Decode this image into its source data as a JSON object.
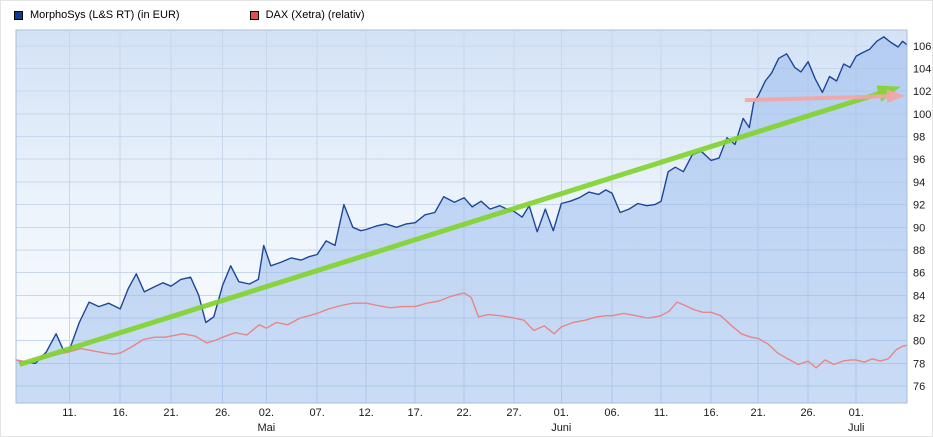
{
  "legend": {
    "items": [
      {
        "label": "MorphoSys (L&S RT) (in EUR)",
        "color": "#123a8c"
      },
      {
        "label": "DAX (Xetra) (relativ)",
        "color": "#e05050"
      }
    ]
  },
  "chart_data": {
    "type": "line",
    "title": "",
    "xlabel": "",
    "ylabel": "",
    "legend_position": "top-left",
    "grid": true,
    "background_gradient": [
      "#d3e2f6",
      "#edf4fc",
      "#ffffff"
    ],
    "grid_color": "#c9d7eb",
    "ylim": [
      74.5,
      107.4
    ],
    "yticks": [
      76,
      78,
      80,
      82,
      84,
      86,
      88,
      90,
      92,
      94,
      96,
      98,
      100,
      102,
      104,
      106
    ],
    "xticks": [
      {
        "pos": 0.06,
        "label": "11."
      },
      {
        "pos": 0.117,
        "label": "16."
      },
      {
        "pos": 0.174,
        "label": "21."
      },
      {
        "pos": 0.232,
        "label": "26."
      },
      {
        "pos": 0.281,
        "label": "02."
      },
      {
        "pos": 0.338,
        "label": "07."
      },
      {
        "pos": 0.393,
        "label": "12."
      },
      {
        "pos": 0.448,
        "label": "17."
      },
      {
        "pos": 0.503,
        "label": "22."
      },
      {
        "pos": 0.559,
        "label": "27."
      },
      {
        "pos": 0.612,
        "label": "01."
      },
      {
        "pos": 0.669,
        "label": "06."
      },
      {
        "pos": 0.724,
        "label": "11."
      },
      {
        "pos": 0.78,
        "label": "16."
      },
      {
        "pos": 0.833,
        "label": "21."
      },
      {
        "pos": 0.889,
        "label": "26."
      },
      {
        "pos": 0.943,
        "label": "01."
      }
    ],
    "month_labels": [
      {
        "pos": 0.281,
        "label": "Mai"
      },
      {
        "pos": 0.612,
        "label": "Juni"
      },
      {
        "pos": 0.943,
        "label": "Juli"
      }
    ],
    "series": [
      {
        "name": "MorphoSys (L&S RT) (in EUR)",
        "type": "area",
        "color": "#1d4796",
        "fill": "rgba(147,184,236,0.5)",
        "points": [
          [
            0.0,
            78.3
          ],
          [
            0.011,
            78.1
          ],
          [
            0.022,
            78.0
          ],
          [
            0.034,
            79.0
          ],
          [
            0.045,
            80.6
          ],
          [
            0.053,
            79.2
          ],
          [
            0.059,
            79.0
          ],
          [
            0.071,
            81.6
          ],
          [
            0.082,
            83.4
          ],
          [
            0.093,
            83.0
          ],
          [
            0.104,
            83.3
          ],
          [
            0.117,
            82.8
          ],
          [
            0.126,
            84.6
          ],
          [
            0.135,
            85.9
          ],
          [
            0.144,
            84.3
          ],
          [
            0.154,
            84.7
          ],
          [
            0.165,
            85.1
          ],
          [
            0.174,
            84.8
          ],
          [
            0.185,
            85.4
          ],
          [
            0.196,
            85.6
          ],
          [
            0.205,
            84.0
          ],
          [
            0.213,
            81.6
          ],
          [
            0.222,
            82.1
          ],
          [
            0.232,
            84.9
          ],
          [
            0.241,
            86.6
          ],
          [
            0.25,
            85.2
          ],
          [
            0.262,
            85.0
          ],
          [
            0.272,
            85.4
          ],
          [
            0.278,
            88.4
          ],
          [
            0.286,
            86.6
          ],
          [
            0.297,
            86.9
          ],
          [
            0.309,
            87.3
          ],
          [
            0.32,
            87.1
          ],
          [
            0.329,
            87.4
          ],
          [
            0.338,
            87.6
          ],
          [
            0.348,
            88.8
          ],
          [
            0.358,
            88.4
          ],
          [
            0.368,
            92.0
          ],
          [
            0.378,
            90.0
          ],
          [
            0.387,
            89.7
          ],
          [
            0.393,
            89.8
          ],
          [
            0.404,
            90.1
          ],
          [
            0.415,
            90.3
          ],
          [
            0.427,
            90.0
          ],
          [
            0.438,
            90.3
          ],
          [
            0.448,
            90.4
          ],
          [
            0.459,
            91.1
          ],
          [
            0.47,
            91.3
          ],
          [
            0.48,
            92.7
          ],
          [
            0.492,
            92.2
          ],
          [
            0.503,
            92.6
          ],
          [
            0.512,
            91.8
          ],
          [
            0.522,
            92.3
          ],
          [
            0.532,
            91.6
          ],
          [
            0.543,
            91.9
          ],
          [
            0.551,
            91.6
          ],
          [
            0.559,
            91.4
          ],
          [
            0.568,
            90.9
          ],
          [
            0.576,
            91.9
          ],
          [
            0.585,
            89.6
          ],
          [
            0.594,
            91.6
          ],
          [
            0.603,
            89.7
          ],
          [
            0.612,
            92.1
          ],
          [
            0.622,
            92.3
          ],
          [
            0.632,
            92.6
          ],
          [
            0.643,
            93.1
          ],
          [
            0.654,
            92.9
          ],
          [
            0.662,
            93.3
          ],
          [
            0.669,
            93.0
          ],
          [
            0.678,
            91.3
          ],
          [
            0.688,
            91.6
          ],
          [
            0.698,
            92.1
          ],
          [
            0.708,
            91.9
          ],
          [
            0.717,
            92.0
          ],
          [
            0.724,
            92.3
          ],
          [
            0.732,
            94.9
          ],
          [
            0.74,
            95.3
          ],
          [
            0.749,
            94.9
          ],
          [
            0.759,
            96.4
          ],
          [
            0.769,
            96.7
          ],
          [
            0.78,
            95.9
          ],
          [
            0.789,
            96.1
          ],
          [
            0.798,
            97.9
          ],
          [
            0.807,
            97.3
          ],
          [
            0.816,
            99.6
          ],
          [
            0.823,
            98.8
          ],
          [
            0.828,
            101.0
          ],
          [
            0.833,
            101.6
          ],
          [
            0.841,
            102.9
          ],
          [
            0.848,
            103.6
          ],
          [
            0.856,
            104.9
          ],
          [
            0.865,
            105.3
          ],
          [
            0.874,
            104.1
          ],
          [
            0.881,
            103.7
          ],
          [
            0.889,
            104.6
          ],
          [
            0.897,
            103.1
          ],
          [
            0.905,
            101.9
          ],
          [
            0.913,
            103.3
          ],
          [
            0.921,
            102.9
          ],
          [
            0.929,
            104.4
          ],
          [
            0.936,
            104.1
          ],
          [
            0.943,
            105.1
          ],
          [
            0.95,
            105.4
          ],
          [
            0.958,
            105.7
          ],
          [
            0.966,
            106.4
          ],
          [
            0.974,
            106.8
          ],
          [
            0.982,
            106.3
          ],
          [
            0.99,
            105.9
          ],
          [
            0.995,
            106.4
          ],
          [
            1.0,
            106.1
          ]
        ]
      },
      {
        "name": "DAX (Xetra) (relativ)",
        "type": "line",
        "color": "#e88585",
        "points": [
          [
            0.0,
            78.3
          ],
          [
            0.015,
            78.1
          ],
          [
            0.028,
            78.4
          ],
          [
            0.042,
            78.7
          ],
          [
            0.053,
            78.9
          ],
          [
            0.059,
            79.0
          ],
          [
            0.073,
            79.3
          ],
          [
            0.086,
            79.1
          ],
          [
            0.1,
            78.9
          ],
          [
            0.109,
            78.8
          ],
          [
            0.117,
            78.9
          ],
          [
            0.129,
            79.4
          ],
          [
            0.143,
            80.1
          ],
          [
            0.156,
            80.3
          ],
          [
            0.167,
            80.3
          ],
          [
            0.174,
            80.4
          ],
          [
            0.187,
            80.6
          ],
          [
            0.201,
            80.4
          ],
          [
            0.214,
            79.8
          ],
          [
            0.223,
            80.0
          ],
          [
            0.232,
            80.3
          ],
          [
            0.246,
            80.7
          ],
          [
            0.259,
            80.5
          ],
          [
            0.273,
            81.4
          ],
          [
            0.281,
            81.1
          ],
          [
            0.292,
            81.6
          ],
          [
            0.305,
            81.4
          ],
          [
            0.319,
            82.0
          ],
          [
            0.329,
            82.2
          ],
          [
            0.338,
            82.4
          ],
          [
            0.351,
            82.8
          ],
          [
            0.365,
            83.1
          ],
          [
            0.378,
            83.3
          ],
          [
            0.393,
            83.3
          ],
          [
            0.406,
            83.1
          ],
          [
            0.42,
            82.9
          ],
          [
            0.433,
            83.0
          ],
          [
            0.448,
            83.0
          ],
          [
            0.461,
            83.3
          ],
          [
            0.475,
            83.5
          ],
          [
            0.488,
            83.9
          ],
          [
            0.497,
            84.1
          ],
          [
            0.503,
            84.2
          ],
          [
            0.511,
            83.8
          ],
          [
            0.519,
            82.1
          ],
          [
            0.53,
            82.3
          ],
          [
            0.543,
            82.2
          ],
          [
            0.551,
            82.1
          ],
          [
            0.559,
            82.0
          ],
          [
            0.57,
            81.8
          ],
          [
            0.581,
            80.9
          ],
          [
            0.593,
            81.3
          ],
          [
            0.604,
            80.6
          ],
          [
            0.612,
            81.2
          ],
          [
            0.625,
            81.6
          ],
          [
            0.639,
            81.8
          ],
          [
            0.652,
            82.1
          ],
          [
            0.663,
            82.2
          ],
          [
            0.669,
            82.2
          ],
          [
            0.682,
            82.4
          ],
          [
            0.696,
            82.2
          ],
          [
            0.709,
            82.0
          ],
          [
            0.718,
            82.1
          ],
          [
            0.724,
            82.2
          ],
          [
            0.733,
            82.6
          ],
          [
            0.742,
            83.4
          ],
          [
            0.751,
            83.1
          ],
          [
            0.762,
            82.7
          ],
          [
            0.771,
            82.5
          ],
          [
            0.78,
            82.5
          ],
          [
            0.791,
            82.2
          ],
          [
            0.802,
            81.4
          ],
          [
            0.814,
            80.6
          ],
          [
            0.825,
            80.3
          ],
          [
            0.833,
            80.2
          ],
          [
            0.844,
            79.7
          ],
          [
            0.855,
            78.9
          ],
          [
            0.866,
            78.4
          ],
          [
            0.878,
            77.9
          ],
          [
            0.889,
            78.2
          ],
          [
            0.898,
            77.6
          ],
          [
            0.908,
            78.3
          ],
          [
            0.918,
            77.9
          ],
          [
            0.928,
            78.2
          ],
          [
            0.937,
            78.3
          ],
          [
            0.943,
            78.3
          ],
          [
            0.952,
            78.1
          ],
          [
            0.961,
            78.4
          ],
          [
            0.97,
            78.2
          ],
          [
            0.979,
            78.4
          ],
          [
            0.988,
            79.2
          ],
          [
            0.995,
            79.5
          ],
          [
            1.0,
            79.6
          ]
        ]
      }
    ],
    "annotations": [
      {
        "name": "trend-arrow",
        "kind": "arrow",
        "color": "#83d430",
        "width": 5,
        "from": [
          0.004,
          77.9
        ],
        "to": [
          0.993,
          102.4
        ]
      },
      {
        "name": "level-arrow",
        "kind": "arrow",
        "color": "#f4a5a5",
        "width": 4,
        "from": [
          0.818,
          101.2
        ],
        "to": [
          0.998,
          101.6
        ]
      }
    ]
  }
}
